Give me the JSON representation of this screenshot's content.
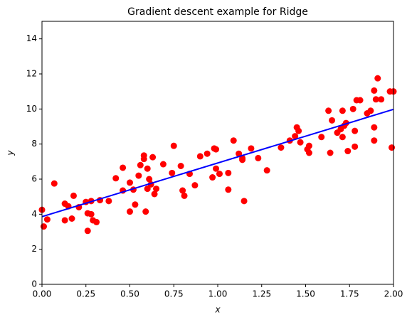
{
  "chart_data": {
    "type": "scatter",
    "title": "Gradient descent example for Ridge",
    "xlabel": "x",
    "ylabel": "y",
    "xlim": [
      0,
      2
    ],
    "ylim": [
      0,
      15
    ],
    "xticks": [
      {
        "value": 0,
        "label": "0.00"
      },
      0.25,
      {
        "value": 0.5,
        "label": "0.50"
      },
      0.75,
      {
        "value": 1,
        "label": "1.00"
      },
      1.25,
      {
        "value": 1.5,
        "label": "1.50"
      },
      1.75,
      {
        "value": 2,
        "label": "2.00"
      }
    ],
    "yticks": [
      0,
      2,
      4,
      6,
      8,
      10,
      12,
      14
    ],
    "series": [
      {
        "type": "scatter",
        "color": "#ff0000",
        "x": [
          0.0,
          0.01,
          0.03,
          0.07,
          0.13,
          0.13,
          0.15,
          0.17,
          0.18,
          0.21,
          0.25,
          0.26,
          0.26,
          0.28,
          0.28,
          0.29,
          0.31,
          0.33,
          0.38,
          0.42,
          0.46,
          0.46,
          0.5,
          0.5,
          0.52,
          0.53,
          0.55,
          0.56,
          0.58,
          0.58,
          0.59,
          0.6,
          0.6,
          0.61,
          0.62,
          0.63,
          0.64,
          0.65,
          0.69,
          0.74,
          0.75,
          0.79,
          0.8,
          0.81,
          0.84,
          0.87,
          0.9,
          0.94,
          0.97,
          0.98,
          0.99,
          0.99,
          1.01,
          1.06,
          1.06,
          1.09,
          1.12,
          1.14,
          1.14,
          1.15,
          1.19,
          1.23,
          1.28,
          1.36,
          1.41,
          1.44,
          1.45,
          1.46,
          1.47,
          1.51,
          1.52,
          1.52,
          1.59,
          1.63,
          1.64,
          1.65,
          1.68,
          1.7,
          1.71,
          1.71,
          1.72,
          1.73,
          1.74,
          1.77,
          1.78,
          1.78,
          1.79,
          1.81,
          1.85,
          1.87,
          1.89,
          1.89,
          1.89,
          1.9,
          1.91,
          1.93,
          1.98,
          1.99,
          2.0
        ],
        "values": [
          4.25,
          3.3,
          3.7,
          5.75,
          4.6,
          3.65,
          4.45,
          3.75,
          5.05,
          4.4,
          4.7,
          4.05,
          3.05,
          4.0,
          4.75,
          3.65,
          3.55,
          4.8,
          4.75,
          6.05,
          5.35,
          6.65,
          4.15,
          5.8,
          5.4,
          4.55,
          6.2,
          6.8,
          7.35,
          7.15,
          4.15,
          6.6,
          5.45,
          6.0,
          5.7,
          7.25,
          5.15,
          5.45,
          6.85,
          6.35,
          7.9,
          6.75,
          5.35,
          5.05,
          6.3,
          5.65,
          7.3,
          7.45,
          6.1,
          7.75,
          7.7,
          6.6,
          6.3,
          5.4,
          6.35,
          8.2,
          7.45,
          7.1,
          7.2,
          4.75,
          7.75,
          7.2,
          6.5,
          7.8,
          8.2,
          8.45,
          8.95,
          8.75,
          8.1,
          7.7,
          7.9,
          7.5,
          8.4,
          9.9,
          7.5,
          9.35,
          8.65,
          8.85,
          9.9,
          8.4,
          9.05,
          9.2,
          7.6,
          10.0,
          7.85,
          8.75,
          10.5,
          10.5,
          9.75,
          9.9,
          11.05,
          8.95,
          8.2,
          10.55,
          11.75,
          10.55,
          11.0,
          7.8,
          11.0
        ]
      },
      {
        "type": "line",
        "color": "#0000ff",
        "x": [
          0,
          2
        ],
        "values": [
          3.86,
          9.98
        ]
      }
    ]
  }
}
